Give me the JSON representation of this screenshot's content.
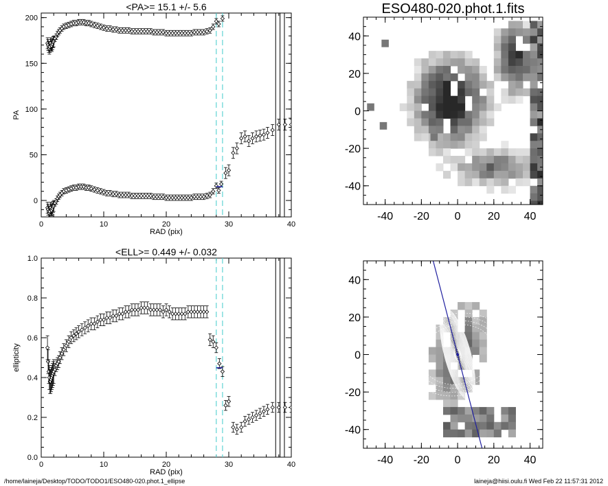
{
  "footer": {
    "path": "/home/laineja/Desktop/TODO/TODO1/ESO480-020.phot.1_ellipse",
    "user": "laineja@hiisi.oulu.fi  Wed Feb 22 11:57:31 2012"
  },
  "colors": {
    "frame": "#000000",
    "dashed_lines": "#5fd3d3",
    "fit_line": "#1f1f9f",
    "vertical_lines": "#000000"
  },
  "chart_data": [
    {
      "id": "pa",
      "type": "scatter",
      "title": "<PA>=  15.1 +/-   5.6",
      "xlabel": "RAD (pix)",
      "ylabel": "PA",
      "xlim": [
        0,
        40
      ],
      "ylim": [
        -18,
        205
      ],
      "xticks": [
        0,
        10,
        20,
        30,
        40
      ],
      "yticks": [
        0,
        50,
        100,
        150,
        200
      ],
      "marker": "diamond",
      "error_bars": true,
      "cyan_dashed_x": [
        28.0,
        29.0
      ],
      "black_vertical_x": [
        37.5,
        38.2,
        38.9
      ],
      "mean_marker": {
        "x": 28.5,
        "y": 15.1
      },
      "branches": [
        {
          "name": "",
          "x": [
            1.0,
            1.1,
            1.2,
            1.3,
            1.4,
            1.5,
            1.6,
            1.7,
            1.8,
            1.9,
            2.0,
            2.2,
            2.4,
            2.6,
            2.8,
            3.0,
            3.3,
            3.6,
            4.0,
            4.4,
            4.8,
            5.2,
            5.6,
            6.0,
            6.4,
            6.8,
            7.2,
            7.6,
            8.0,
            8.5,
            9.0,
            9.5,
            10.0,
            10.5,
            11.0,
            11.5,
            12.0,
            12.5,
            13.0,
            13.5,
            14.0,
            14.5,
            15.0,
            15.5,
            16.0,
            16.5,
            17.0,
            17.5,
            18.0,
            18.5,
            19.0,
            19.5,
            20.0,
            20.5,
            21.0,
            21.5,
            22.0,
            22.5,
            23.0,
            23.5,
            24.0,
            24.5,
            25.0,
            25.5,
            26.0,
            26.5,
            27.0,
            27.5,
            28.0,
            28.4,
            29.0
          ],
          "y": [
            172,
            170,
            168,
            166,
            168,
            172,
            170,
            169,
            171,
            173,
            174,
            177,
            179,
            182,
            184,
            186,
            188,
            190,
            191,
            192,
            193,
            194,
            194,
            195,
            195,
            195,
            194,
            194,
            193,
            192,
            191,
            190,
            189,
            188,
            188,
            187,
            187,
            186,
            186,
            186,
            186,
            185,
            185,
            185,
            185,
            185,
            185,
            185,
            184,
            184,
            184,
            184,
            183,
            183,
            183,
            183,
            183,
            183,
            183,
            183,
            183,
            184,
            184,
            184,
            184,
            185,
            186,
            190,
            196,
            193,
            199
          ]
        },
        {
          "name": "",
          "x": [
            1.0,
            1.1,
            1.2,
            1.3,
            1.4,
            1.5,
            1.6,
            1.7,
            1.8,
            1.9,
            2.0,
            2.2,
            2.4,
            2.6,
            2.8,
            3.0,
            3.3,
            3.6,
            4.0,
            4.4,
            4.8,
            5.2,
            5.6,
            6.0,
            6.4,
            6.8,
            7.2,
            7.6,
            8.0,
            8.5,
            9.0,
            9.5,
            10.0,
            10.5,
            11.0,
            11.5,
            12.0,
            12.5,
            13.0,
            13.5,
            14.0,
            14.5,
            15.0,
            15.5,
            16.0,
            16.5,
            17.0,
            17.5,
            18.0,
            18.5,
            19.0,
            19.5,
            20.0,
            20.5,
            21.0,
            21.5,
            22.0,
            22.5,
            23.0,
            23.5,
            24.0,
            24.5,
            25.0,
            25.5,
            26.0,
            26.5,
            27.0,
            27.5,
            28.0,
            28.4,
            28.8,
            29.5,
            30.0,
            30.7,
            31.3,
            32.0,
            32.6,
            33.2,
            33.8,
            34.4,
            35.0,
            35.6,
            36.2,
            37.0,
            38.0,
            39.0,
            40.0
          ],
          "y": [
            -8,
            -10,
            -12,
            -14,
            -12,
            -8,
            -10,
            -11,
            -9,
            -7,
            -6,
            -3,
            -1,
            2,
            4,
            6,
            8,
            10,
            11,
            12,
            13,
            14,
            14,
            15,
            15,
            15,
            14,
            14,
            13,
            12,
            11,
            10,
            9,
            8,
            8,
            7,
            7,
            6,
            6,
            6,
            6,
            5,
            5,
            5,
            5,
            5,
            5,
            5,
            4,
            4,
            4,
            4,
            3,
            3,
            3,
            3,
            3,
            3,
            3,
            3,
            3,
            4,
            4,
            4,
            4,
            5,
            6,
            10,
            16,
            11,
            18,
            30,
            33,
            52,
            57,
            68,
            70,
            65,
            68,
            70,
            71,
            72,
            74,
            77,
            83,
            83,
            83
          ]
        }
      ]
    },
    {
      "id": "ell",
      "type": "scatter",
      "title": "<ELL>= 0.449 +/-  0.032",
      "xlabel": "RAD (pix)",
      "ylabel": "ellipticity",
      "xlim": [
        0,
        40
      ],
      "ylim": [
        0.0,
        1.0
      ],
      "xticks": [
        0,
        10,
        20,
        30,
        40
      ],
      "yticks": [
        0.0,
        0.2,
        0.4,
        0.6,
        0.8,
        1.0
      ],
      "marker": "diamond",
      "error_bars": true,
      "cyan_dashed_x": [
        28.0,
        29.0
      ],
      "black_vertical_x": [
        37.5,
        38.2,
        38.9
      ],
      "mean_marker": {
        "x": 28.5,
        "y": 0.449
      },
      "branches": [
        {
          "name": "",
          "x": [
            1.0,
            1.1,
            1.2,
            1.3,
            1.4,
            1.5,
            1.6,
            1.7,
            1.8,
            1.9,
            2.0,
            2.2,
            2.4,
            2.6,
            2.8,
            3.0,
            3.3,
            3.6,
            4.0,
            4.4,
            4.8,
            5.2,
            5.6,
            6.0,
            6.5,
            7.0,
            7.5,
            8.0,
            8.5,
            9.0,
            9.5,
            10.0,
            10.5,
            11.0,
            11.5,
            12.0,
            12.5,
            13.0,
            13.5,
            14.0,
            14.5,
            15.0,
            15.5,
            16.0,
            16.5,
            17.0,
            17.5,
            18.0,
            18.5,
            19.0,
            19.5,
            20.0,
            20.5,
            21.0,
            21.5,
            22.0,
            22.5,
            23.0,
            23.5,
            24.0,
            24.5,
            25.0,
            25.5,
            26.0,
            26.5,
            27.0,
            27.5,
            28.0,
            28.5,
            29.0,
            29.5,
            30.0,
            30.7,
            31.3,
            32.0,
            32.6,
            33.2,
            33.8,
            34.4,
            35.0,
            35.6,
            36.2,
            37.0,
            38.0,
            39.0,
            40.0
          ],
          "y": [
            0.55,
            0.48,
            0.43,
            0.4,
            0.38,
            0.38,
            0.39,
            0.4,
            0.41,
            0.42,
            0.43,
            0.44,
            0.46,
            0.47,
            0.48,
            0.5,
            0.52,
            0.54,
            0.56,
            0.58,
            0.6,
            0.61,
            0.62,
            0.63,
            0.64,
            0.65,
            0.66,
            0.67,
            0.67,
            0.68,
            0.69,
            0.69,
            0.7,
            0.7,
            0.71,
            0.71,
            0.72,
            0.72,
            0.73,
            0.73,
            0.74,
            0.74,
            0.74,
            0.75,
            0.75,
            0.75,
            0.74,
            0.74,
            0.74,
            0.74,
            0.73,
            0.74,
            0.73,
            0.72,
            0.72,
            0.72,
            0.72,
            0.72,
            0.73,
            0.73,
            0.73,
            0.73,
            0.73,
            0.73,
            0.73,
            0.59,
            0.58,
            0.55,
            0.47,
            0.43,
            0.26,
            0.28,
            0.15,
            0.14,
            0.15,
            0.18,
            0.19,
            0.2,
            0.21,
            0.22,
            0.23,
            0.24,
            0.25,
            0.25,
            0.25,
            0.25
          ]
        }
      ]
    },
    {
      "id": "img",
      "type": "heatmap",
      "title": "ESO480-020.phot.1.fits",
      "xlim": [
        -52,
        47
      ],
      "ylim": [
        -50,
        50
      ],
      "xticks": [
        -40,
        -20,
        0,
        20,
        40
      ],
      "yticks": [
        -40,
        -20,
        0,
        20,
        40
      ],
      "colormap": "grayscale-inverted"
    },
    {
      "id": "mask",
      "type": "heatmap",
      "title": "",
      "xlim": [
        -52,
        47
      ],
      "ylim": [
        -50,
        50
      ],
      "xticks": [
        -40,
        -20,
        0,
        20,
        40
      ],
      "yticks": [
        -40,
        -20,
        0,
        20,
        40
      ],
      "colormap": "grayscale-inverted",
      "overlay": "fitted ellipses",
      "pa_line_deg": 15.1
    }
  ]
}
